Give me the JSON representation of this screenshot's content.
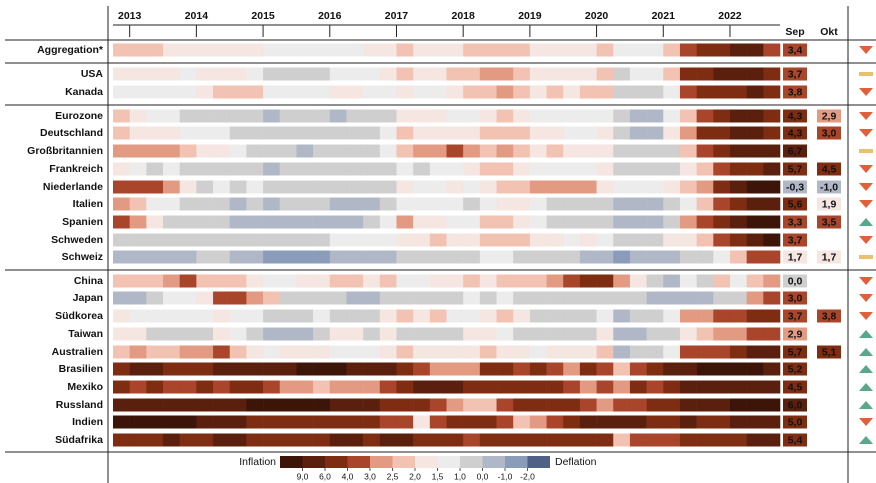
{
  "chart_data": {
    "type": "heatmap",
    "xlim": [
      2012.75,
      2022.75
    ],
    "xticks": [
      2013,
      2014,
      2015,
      2016,
      2017,
      2018,
      2019,
      2020,
      2021,
      2022
    ],
    "rows": [
      {
        "name": "Aggregation*",
        "trend": "down",
        "values": [
          2.2,
          2.0,
          2.3,
          1.8,
          1.6,
          1.6,
          1.7,
          1.8,
          1.5,
          1.2,
          1.3,
          1.2,
          1.4,
          1.3,
          1.4,
          1.5,
          1.7,
          2.0,
          1.8,
          1.7,
          1.9,
          2.0,
          2.2,
          2.3,
          2.0,
          1.8,
          1.9,
          1.7,
          1.9,
          2.0,
          1.3,
          1.2,
          1.3,
          2.3,
          3.5,
          4.2,
          5.0,
          6.5,
          7.0,
          3.5
        ]
      },
      {
        "name": "USA",
        "trend": "flat",
        "values": [
          1.8,
          1.6,
          1.5,
          1.6,
          1.2,
          1.5,
          1.9,
          1.8,
          1.3,
          0.8,
          0.5,
          0.8,
          0.7,
          1.2,
          1.3,
          1.4,
          1.8,
          2.3,
          1.8,
          1.9,
          2.1,
          2.3,
          2.6,
          2.5,
          2.1,
          1.6,
          1.8,
          1.7,
          1.9,
          2.0,
          0.8,
          1.2,
          1.3,
          2.0,
          4.5,
          5.3,
          6.5,
          7.5,
          8.0,
          5.0
        ]
      },
      {
        "name": "Kanada",
        "trend": "down",
        "values": [
          1.2,
          1.0,
          1.2,
          1.2,
          1.0,
          1.5,
          2.2,
          2.1,
          2.0,
          1.1,
          1.0,
          1.2,
          1.3,
          1.5,
          1.6,
          1.3,
          1.4,
          1.9,
          1.4,
          1.4,
          1.7,
          2.2,
          2.3,
          2.7,
          2.0,
          1.6,
          2.0,
          1.9,
          2.1,
          2.2,
          0.3,
          0.5,
          0.8,
          1.2,
          3.2,
          4.2,
          4.8,
          5.5,
          7.0,
          4.5
        ]
      },
      {
        "name": "Eurozone",
        "trend": "down",
        "values": [
          2.2,
          1.8,
          1.4,
          1.2,
          0.8,
          0.6,
          0.5,
          0.4,
          0.2,
          -0.2,
          0.2,
          0.1,
          0.2,
          -0.1,
          0.1,
          0.4,
          0.8,
          1.8,
          1.5,
          1.5,
          1.4,
          1.3,
          1.8,
          2.1,
          1.9,
          1.4,
          1.4,
          1.0,
          1.0,
          1.2,
          0.3,
          -0.2,
          -0.3,
          1.2,
          2.0,
          3.2,
          4.5,
          6.0,
          7.5,
          4.5
        ]
      },
      {
        "name": "Deutschland",
        "trend": "down",
        "values": [
          2.0,
          1.6,
          1.5,
          1.6,
          1.3,
          1.1,
          1.0,
          0.8,
          0.3,
          0.2,
          0.5,
          0.2,
          0.3,
          0.2,
          0.2,
          0.6,
          1.4,
          2.0,
          1.6,
          1.7,
          1.7,
          1.5,
          2.0,
          2.2,
          2.1,
          1.5,
          1.6,
          1.2,
          1.2,
          1.6,
          0.8,
          -0.2,
          -0.3,
          1.6,
          2.5,
          4.0,
          5.5,
          6.0,
          7.5,
          4.5
        ]
      },
      {
        "name": "Großbritannien",
        "trend": "flat",
        "values": [
          2.7,
          2.8,
          2.8,
          2.5,
          2.1,
          1.7,
          1.6,
          1.4,
          0.9,
          0.1,
          0.0,
          -0.1,
          0.1,
          0.3,
          0.4,
          0.7,
          1.3,
          2.2,
          2.8,
          2.8,
          3.0,
          2.8,
          2.4,
          2.6,
          2.2,
          1.9,
          2.0,
          1.8,
          1.5,
          1.7,
          0.8,
          0.7,
          0.5,
          0.7,
          2.1,
          3.0,
          5.0,
          6.0,
          8.5,
          7.0
        ]
      },
      {
        "name": "Frankreich",
        "trend": "down",
        "values": [
          1.5,
          1.1,
          0.9,
          1.0,
          0.7,
          0.9,
          0.6,
          0.4,
          0.3,
          -0.1,
          0.2,
          0.1,
          0.2,
          0.0,
          0.1,
          0.4,
          0.6,
          1.3,
          0.9,
          1.0,
          1.2,
          1.5,
          2.0,
          2.4,
          1.9,
          1.2,
          1.2,
          1.1,
          1.3,
          1.5,
          0.3,
          0.2,
          0.1,
          0.7,
          1.6,
          2.4,
          3.4,
          4.0,
          5.8,
          6.0
        ]
      },
      {
        "name": "Niederlande",
        "trend": "down",
        "values": [
          3.0,
          3.0,
          3.0,
          2.5,
          1.5,
          0.8,
          1.0,
          0.5,
          1.0,
          0.5,
          0.8,
          0.7,
          0.6,
          0.5,
          0.0,
          0.3,
          0.8,
          1.6,
          1.0,
          1.4,
          1.5,
          1.3,
          1.6,
          2.0,
          2.0,
          2.6,
          2.8,
          2.8,
          2.8,
          1.5,
          1.2,
          1.0,
          1.0,
          1.8,
          2.0,
          2.5,
          5.0,
          7.0,
          9.0,
          9.5
        ]
      },
      {
        "name": "Italien",
        "trend": "down",
        "values": [
          2.6,
          2.0,
          1.2,
          1.0,
          0.7,
          0.5,
          0.3,
          -0.1,
          0.2,
          -0.2,
          0.1,
          0.3,
          0.2,
          -0.2,
          -0.3,
          -0.1,
          0.2,
          1.4,
          1.4,
          1.2,
          1.0,
          0.8,
          1.2,
          1.6,
          1.5,
          1.0,
          0.8,
          0.5,
          0.4,
          0.4,
          -0.1,
          -0.5,
          -0.3,
          0.6,
          1.3,
          2.0,
          3.8,
          5.5,
          7.0,
          8.0
        ]
      },
      {
        "name": "Spanien",
        "trend": "up",
        "values": [
          3.0,
          2.5,
          1.8,
          0.5,
          0.2,
          0.0,
          0.1,
          -0.3,
          -0.5,
          -1.0,
          -0.3,
          -0.2,
          -0.5,
          -0.8,
          -0.8,
          0.1,
          1.0,
          2.5,
          1.8,
          1.5,
          1.4,
          1.2,
          2.0,
          2.2,
          1.5,
          1.2,
          0.9,
          0.3,
          0.5,
          0.5,
          -0.8,
          -0.6,
          -0.8,
          0.6,
          2.5,
          3.5,
          5.5,
          7.5,
          9.0,
          9.5
        ]
      },
      {
        "name": "Schweden",
        "trend": "down",
        "values": [
          0.5,
          0.2,
          0.4,
          0.2,
          0.1,
          0.2,
          0.4,
          0.4,
          0.2,
          0.4,
          0.7,
          0.8,
          0.8,
          1.0,
          1.0,
          1.2,
          1.4,
          1.6,
          1.8,
          2.0,
          1.8,
          1.9,
          2.0,
          2.1,
          2.0,
          1.8,
          1.8,
          1.4,
          1.5,
          1.3,
          0.5,
          0.6,
          0.4,
          1.8,
          1.9,
          2.3,
          3.5,
          4.5,
          7.0,
          9.0
        ]
      },
      {
        "name": "Schweiz",
        "trend": "flat",
        "values": [
          -0.4,
          -0.3,
          -0.1,
          -0.1,
          -0.2,
          0.0,
          0.0,
          -0.1,
          -0.4,
          -1.1,
          -1.2,
          -1.4,
          -1.4,
          -1.0,
          -0.4,
          -0.2,
          -0.2,
          0.5,
          0.4,
          0.5,
          0.8,
          0.7,
          1.0,
          1.1,
          0.9,
          0.6,
          0.5,
          0.3,
          -0.1,
          -0.3,
          -1.2,
          -0.9,
          -0.7,
          -0.3,
          0.5,
          0.8,
          1.2,
          2.0,
          3.0,
          3.3
        ]
      },
      {
        "name": "China",
        "trend": "down",
        "values": [
          2.1,
          2.4,
          2.4,
          2.8,
          3.0,
          2.2,
          2.2,
          2.0,
          1.5,
          1.2,
          1.4,
          1.7,
          1.5,
          2.1,
          2.1,
          1.8,
          2.2,
          1.4,
          1.4,
          1.6,
          1.8,
          2.2,
          1.8,
          2.3,
          2.2,
          2.2,
          2.6,
          3.0,
          4.5,
          5.0,
          2.7,
          1.7,
          0.0,
          -0.2,
          1.1,
          0.8,
          2.0,
          1.0,
          2.2,
          2.6
        ]
      },
      {
        "name": "Japan",
        "trend": "down",
        "values": [
          -0.2,
          -0.6,
          0.3,
          1.0,
          1.4,
          1.5,
          3.4,
          3.3,
          2.5,
          2.3,
          0.5,
          0.2,
          0.2,
          0.1,
          -0.4,
          -0.5,
          0.3,
          0.3,
          0.4,
          0.6,
          0.5,
          1.2,
          0.8,
          1.2,
          0.8,
          0.4,
          0.8,
          0.2,
          0.6,
          0.6,
          0.1,
          0.0,
          -0.8,
          -0.5,
          -0.8,
          -0.3,
          0.5,
          0.9,
          2.5,
          3.0
        ]
      },
      {
        "name": "Südkorea",
        "trend": "down",
        "values": [
          1.6,
          1.4,
          1.2,
          1.2,
          1.0,
          1.1,
          1.6,
          1.3,
          1.0,
          0.6,
          0.5,
          0.6,
          1.0,
          0.9,
          0.9,
          0.8,
          1.5,
          2.1,
          1.9,
          2.0,
          1.4,
          1.3,
          1.5,
          2.0,
          1.8,
          0.5,
          0.6,
          0.0,
          0.2,
          1.2,
          -0.1,
          0.6,
          0.5,
          1.1,
          2.5,
          2.6,
          3.5,
          3.8,
          5.4,
          5.6
        ]
      },
      {
        "name": "Taiwan",
        "trend": "up",
        "values": [
          1.8,
          1.5,
          0.6,
          0.6,
          0.7,
          0.8,
          1.5,
          1.1,
          0.7,
          -0.6,
          -0.6,
          -0.4,
          0.2,
          1.5,
          1.5,
          0.6,
          1.5,
          0.9,
          0.6,
          0.8,
          0.3,
          1.9,
          1.5,
          1.4,
          0.8,
          0.4,
          0.8,
          0.5,
          0.6,
          1.7,
          -0.8,
          -0.4,
          0.0,
          0.9,
          1.9,
          2.4,
          2.6,
          2.7,
          3.4,
          3.0
        ]
      },
      {
        "name": "Australien",
        "trend": "up",
        "values": [
          2.2,
          2.5,
          2.4,
          2.2,
          2.7,
          2.9,
          3.0,
          2.3,
          1.7,
          1.3,
          1.5,
          1.5,
          1.7,
          1.3,
          1.0,
          1.3,
          1.5,
          2.1,
          1.9,
          1.8,
          1.9,
          1.9,
          2.1,
          1.9,
          1.8,
          1.3,
          1.6,
          1.7,
          1.8,
          2.2,
          -0.3,
          0.7,
          0.9,
          1.1,
          3.8,
          3.0,
          3.5,
          5.1,
          6.1,
          7.3
        ]
      },
      {
        "name": "Brasilien",
        "trend": "up",
        "values": [
          5.8,
          6.3,
          6.6,
          5.9,
          5.8,
          5.9,
          6.5,
          6.6,
          6.4,
          7.7,
          8.9,
          9.5,
          10.7,
          10.0,
          8.8,
          8.5,
          6.3,
          4.6,
          3.0,
          2.5,
          2.9,
          2.7,
          4.4,
          4.5,
          3.7,
          4.6,
          3.4,
          2.9,
          4.3,
          3.3,
          2.1,
          3.1,
          4.5,
          6.1,
          8.3,
          10.2,
          10.1,
          11.3,
          11.9,
          7.2
        ]
      },
      {
        "name": "Mexiko",
        "trend": "up",
        "values": [
          4.2,
          3.6,
          4.1,
          3.4,
          3.9,
          4.2,
          3.8,
          4.2,
          4.1,
          3.1,
          2.9,
          2.5,
          2.2,
          2.7,
          2.6,
          2.8,
          3.2,
          5.4,
          6.3,
          6.4,
          6.7,
          5.0,
          4.6,
          5.0,
          4.8,
          4.0,
          4.3,
          3.0,
          2.8,
          3.4,
          2.8,
          4.0,
          3.2,
          4.0,
          6.0,
          6.0,
          7.4,
          7.5,
          7.9,
          8.7
        ]
      },
      {
        "name": "Russland",
        "trend": "up",
        "values": [
          6.6,
          7.1,
          6.9,
          6.2,
          6.5,
          6.9,
          7.8,
          8.0,
          9.1,
          16.9,
          15.3,
          15.7,
          12.9,
          8.1,
          7.4,
          6.4,
          5.4,
          4.3,
          4.4,
          3.0,
          2.5,
          2.4,
          2.3,
          3.4,
          4.2,
          5.3,
          4.7,
          4.0,
          3.0,
          2.5,
          3.1,
          3.7,
          4.4,
          5.8,
          6.5,
          7.4,
          8.4,
          16.7,
          15.9,
          13.7
        ]
      },
      {
        "name": "Indien",
        "trend": "down",
        "values": [
          10.0,
          10.5,
          9.5,
          9.8,
          11.2,
          8.0,
          7.0,
          6.5,
          4.5,
          5.0,
          5.3,
          4.4,
          5.3,
          5.5,
          5.8,
          4.2,
          3.4,
          3.6,
          1.5,
          3.3,
          4.9,
          4.4,
          4.9,
          3.7,
          2.2,
          2.9,
          3.2,
          4.0,
          7.4,
          6.6,
          6.2,
          7.3,
          4.6,
          5.5,
          6.3,
          4.4,
          5.6,
          6.9,
          7.0,
          7.4
        ]
      },
      {
        "name": "Südafrika",
        "trend": "up",
        "values": [
          5.7,
          5.9,
          5.5,
          6.0,
          5.3,
          5.9,
          6.6,
          6.0,
          5.8,
          4.0,
          4.7,
          4.6,
          5.2,
          6.3,
          6.3,
          5.9,
          6.6,
          6.1,
          5.1,
          5.1,
          4.6,
          3.8,
          4.4,
          4.9,
          4.5,
          4.5,
          4.5,
          4.1,
          4.0,
          4.1,
          2.2,
          3.0,
          3.1,
          3.2,
          4.9,
          4.9,
          5.5,
          5.9,
          7.4,
          7.5
        ]
      }
    ],
    "columns": [
      {
        "name": "Sep",
        "values": [
          3.4,
          3.7,
          3.8,
          4.3,
          4.3,
          6.7,
          5.7,
          -0.3,
          5.6,
          3.3,
          3.7,
          1.7,
          0.0,
          3.0,
          3.7,
          2.9,
          5.7,
          5.2,
          4.5,
          6.0,
          5.0,
          5.4
        ],
        "value_labels": [
          "3,4",
          "3,7",
          "3,8",
          "4,3",
          "4,3",
          "6,7",
          "5,7",
          "-0,3",
          "5,6",
          "3,3",
          "3,7",
          "1,7",
          "0,0",
          "3,0",
          "3,7",
          "2,9",
          "5,7",
          "5,2",
          "4,5",
          "6,0",
          "5,0",
          "5,4"
        ]
      },
      {
        "name": "Okt",
        "values": [
          null,
          null,
          null,
          2.9,
          3.0,
          null,
          4.5,
          -1.0,
          1.9,
          3.5,
          null,
          1.7,
          null,
          null,
          3.8,
          null,
          5.1,
          null,
          null,
          null,
          null,
          null
        ],
        "value_labels": [
          null,
          null,
          null,
          "2,9",
          "3,0",
          null,
          "4,5",
          "-1,0",
          "1,9",
          "3,5",
          null,
          "1,7",
          null,
          null,
          "3,8",
          null,
          "5,1",
          null,
          null,
          null,
          null,
          null
        ]
      }
    ],
    "legend": {
      "high_label": "Inflation",
      "low_label": "Deflation",
      "breaks": [
        {
          "value": 9,
          "label": "9,0"
        },
        {
          "value": 6,
          "label": "6,0"
        },
        {
          "value": 4,
          "label": "4,0"
        },
        {
          "value": 3,
          "label": "3,0"
        },
        {
          "value": 2.5,
          "label": "2,5"
        },
        {
          "value": 2,
          "label": "2,0"
        },
        {
          "value": 1.5,
          "label": "1,5"
        },
        {
          "value": 1,
          "label": "1,0"
        },
        {
          "value": 0,
          "label": "0,0"
        },
        {
          "value": -1,
          "label": "-1,0"
        },
        {
          "value": -2,
          "label": "-2,0"
        }
      ],
      "colors": [
        "#3d1408",
        "#5a200d",
        "#7e2d12",
        "#a8452a",
        "#e39a82",
        "#f2c2b2",
        "#f5e6e2",
        "#ececec",
        "#cfcfcf",
        "#b0b8c8",
        "#8a9cba",
        "#4f6186"
      ]
    },
    "trend_colors": {
      "down": "#e0603a",
      "flat": "#e8c070",
      "up": "#5aa88a"
    }
  }
}
